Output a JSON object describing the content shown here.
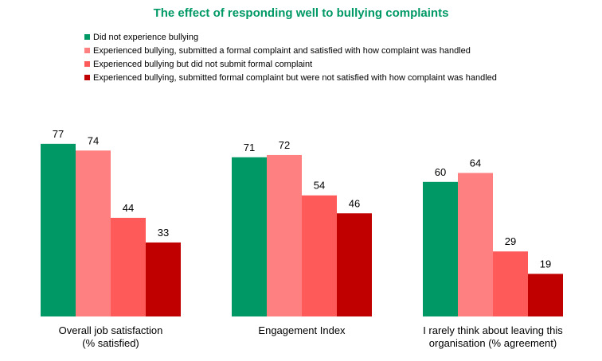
{
  "chart_data": {
    "type": "bar",
    "title": "The effect of responding well to bullying complaints",
    "categories": [
      [
        "Overall job satisfaction",
        "(% satisfied)"
      ],
      [
        "Engagement Index"
      ],
      [
        "I rarely think about leaving this",
        "organisation (% agreement)"
      ]
    ],
    "series": [
      {
        "name": "Did not experience bullying",
        "color": "#009966",
        "values": [
          77,
          71,
          60
        ]
      },
      {
        "name": "Experienced bullying, submitted a formal complaint and satisfied with how complaint was handled",
        "color": "#ff8080",
        "values": [
          74,
          72,
          64
        ]
      },
      {
        "name": "Experienced bullying but did not submit formal complaint",
        "color": "#ff5a5a",
        "values": [
          44,
          54,
          29
        ]
      },
      {
        "name": "Experienced bullying, submitted formal complaint but were not satisfied with how complaint was handled",
        "color": "#c00000",
        "values": [
          33,
          46,
          19
        ]
      }
    ],
    "ylim": [
      0,
      100
    ],
    "grid": false,
    "legend_position": "top"
  }
}
